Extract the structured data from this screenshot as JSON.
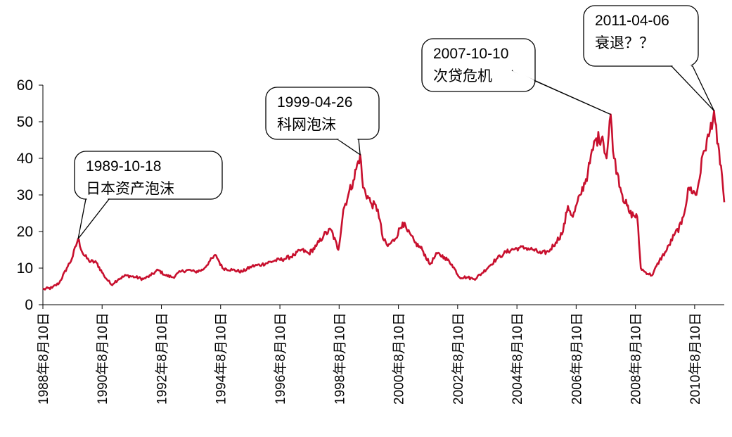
{
  "chart_data": {
    "type": "line",
    "title": "",
    "xlabel": "",
    "ylabel": "",
    "ylim": [
      0,
      60
    ],
    "yticks": [
      0,
      10,
      20,
      30,
      40,
      50,
      60
    ],
    "xlim": [
      "1988-08-10",
      "2011-08-10"
    ],
    "xtick_labels": [
      "1988年8月10日",
      "1990年8月10日",
      "1992年8月10日",
      "1994年8月10日",
      "1996年8月10日",
      "1998年8月10日",
      "2000年8月10日",
      "2002年8月10日",
      "2004年8月10日",
      "2006年8月10日",
      "2008年8月10日",
      "2010年8月10日"
    ],
    "xtick_dates": [
      "1988-08-10",
      "1990-08-10",
      "1992-08-10",
      "1994-08-10",
      "1996-08-10",
      "1998-08-10",
      "2000-08-10",
      "2002-08-10",
      "2004-08-10",
      "2006-08-10",
      "2008-08-10",
      "2010-08-10"
    ],
    "grid": false,
    "legend": "none",
    "series": [
      {
        "color": "#c8102e",
        "points": [
          [
            "1988-08-10",
            4.2
          ],
          [
            "1988-12-01",
            4.6
          ],
          [
            "1989-03-01",
            6.0
          ],
          [
            "1989-06-01",
            10.0
          ],
          [
            "1989-08-01",
            12.5
          ],
          [
            "1989-10-18",
            18.0
          ],
          [
            "1989-12-15",
            14.0
          ],
          [
            "1990-03-01",
            12.0
          ],
          [
            "1990-06-01",
            11.5
          ],
          [
            "1990-09-01",
            8.0
          ],
          [
            "1990-12-01",
            5.5
          ],
          [
            "1991-03-01",
            7.0
          ],
          [
            "1991-06-01",
            8.0
          ],
          [
            "1991-10-01",
            7.5
          ],
          [
            "1992-01-01",
            7.0
          ],
          [
            "1992-04-01",
            8.0
          ],
          [
            "1992-07-01",
            9.5
          ],
          [
            "1992-10-01",
            8.0
          ],
          [
            "1993-01-01",
            7.5
          ],
          [
            "1993-04-01",
            9.0
          ],
          [
            "1993-07-01",
            9.5
          ],
          [
            "1993-10-01",
            9.0
          ],
          [
            "1994-01-01",
            9.5
          ],
          [
            "1994-04-01",
            12.0
          ],
          [
            "1994-06-15",
            13.5
          ],
          [
            "1994-09-01",
            10.0
          ],
          [
            "1995-01-01",
            9.5
          ],
          [
            "1995-05-01",
            9.0
          ],
          [
            "1995-09-01",
            10.5
          ],
          [
            "1996-01-01",
            11.0
          ],
          [
            "1996-06-01",
            12.0
          ],
          [
            "1996-10-01",
            12.5
          ],
          [
            "1997-02-01",
            13.5
          ],
          [
            "1997-05-01",
            15.0
          ],
          [
            "1997-08-01",
            14.0
          ],
          [
            "1997-11-01",
            16.0
          ],
          [
            "1998-02-01",
            19.0
          ],
          [
            "1998-05-01",
            20.5
          ],
          [
            "1998-08-01",
            15.0
          ],
          [
            "1998-10-01",
            26.0
          ],
          [
            "1998-12-01",
            30.0
          ],
          [
            "1999-02-01",
            34.0
          ],
          [
            "1999-04-26",
            41.0
          ],
          [
            "1999-06-01",
            32.0
          ],
          [
            "1999-09-01",
            28.0
          ],
          [
            "1999-12-01",
            26.0
          ],
          [
            "2000-02-01",
            18.0
          ],
          [
            "2000-04-01",
            16.0
          ],
          [
            "2000-07-01",
            18.0
          ],
          [
            "2000-10-01",
            22.5
          ],
          [
            "2000-12-01",
            20.0
          ],
          [
            "2001-03-01",
            17.0
          ],
          [
            "2001-06-01",
            15.0
          ],
          [
            "2001-09-01",
            11.0
          ],
          [
            "2001-12-01",
            14.0
          ],
          [
            "2002-03-01",
            13.0
          ],
          [
            "2002-06-01",
            11.0
          ],
          [
            "2002-09-01",
            7.5
          ],
          [
            "2002-12-01",
            7.5
          ],
          [
            "2003-03-01",
            7.0
          ],
          [
            "2003-06-01",
            8.5
          ],
          [
            "2003-09-01",
            10.5
          ],
          [
            "2003-12-01",
            12.5
          ],
          [
            "2004-03-01",
            14.0
          ],
          [
            "2004-06-01",
            15.0
          ],
          [
            "2004-09-01",
            15.5
          ],
          [
            "2004-12-01",
            15.5
          ],
          [
            "2005-03-01",
            15.0
          ],
          [
            "2005-06-01",
            14.0
          ],
          [
            "2005-09-01",
            14.5
          ],
          [
            "2005-12-01",
            17.0
          ],
          [
            "2006-03-01",
            20.0
          ],
          [
            "2006-05-01",
            27.0
          ],
          [
            "2006-07-01",
            24.0
          ],
          [
            "2006-10-01",
            30.0
          ],
          [
            "2007-01-01",
            36.0
          ],
          [
            "2007-04-01",
            45.0
          ],
          [
            "2007-07-01",
            46.0
          ],
          [
            "2007-08-20",
            40.0
          ],
          [
            "2007-10-10",
            52.0
          ],
          [
            "2007-11-20",
            40.0
          ],
          [
            "2008-01-01",
            36.0
          ],
          [
            "2008-03-01",
            30.0
          ],
          [
            "2008-06-01",
            25.0
          ],
          [
            "2008-09-01",
            24.0
          ],
          [
            "2008-10-15",
            10.0
          ],
          [
            "2008-12-01",
            9.0
          ],
          [
            "2009-03-01",
            8.0
          ],
          [
            "2009-06-01",
            12.0
          ],
          [
            "2009-09-01",
            15.0
          ],
          [
            "2009-12-01",
            19.0
          ],
          [
            "2010-03-01",
            22.0
          ],
          [
            "2010-06-01",
            32.0
          ],
          [
            "2010-09-01",
            30.0
          ],
          [
            "2010-12-01",
            42.0
          ],
          [
            "2011-02-01",
            46.0
          ],
          [
            "2011-04-06",
            53.0
          ],
          [
            "2011-05-15",
            44.0
          ],
          [
            "2011-07-01",
            38.0
          ],
          [
            "2011-08-10",
            28.0
          ]
        ]
      }
    ],
    "annotations": [
      {
        "date": "1989-10-18",
        "value": 18.0,
        "line1": "1989-10-18",
        "line2": "日本资产泡沫"
      },
      {
        "date": "1999-04-26",
        "value": 41.0,
        "line1": "1999-04-26",
        "line2": "科网泡沫"
      },
      {
        "date": "2007-10-10",
        "value": 52.0,
        "line1": "2007-10-10",
        "line2": "次贷危机"
      },
      {
        "date": "2011-04-06",
        "value": 53.0,
        "line1": "2011-04-06",
        "line2": "衰退？？"
      }
    ]
  }
}
